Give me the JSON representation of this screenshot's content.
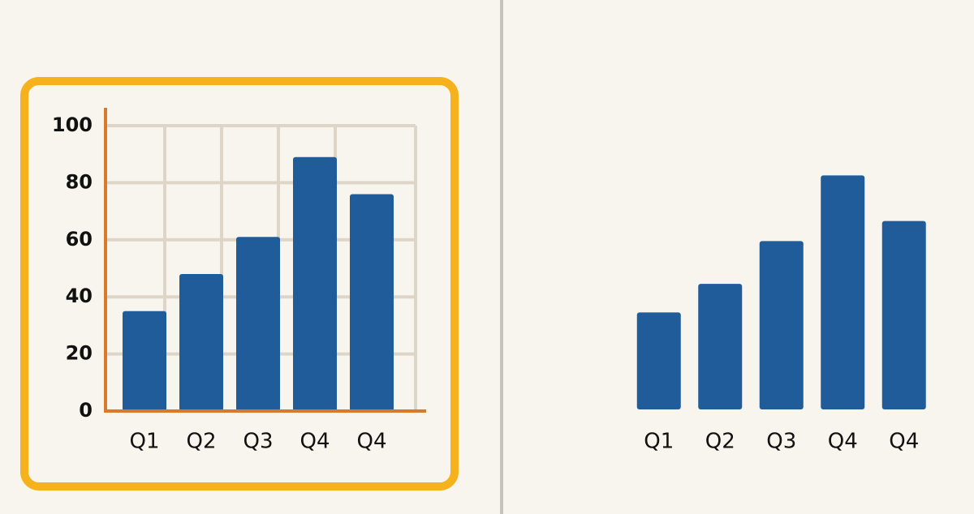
{
  "chart_data": [
    {
      "type": "bar",
      "categories": [
        "Q1",
        "Q2",
        "Q3",
        "Q4",
        "Q4"
      ],
      "values": [
        35,
        48,
        61,
        89,
        76
      ],
      "color": "#1f5c99",
      "ylim": [
        0,
        100
      ],
      "yticks": [
        0,
        20,
        40,
        60,
        80,
        100
      ],
      "grid": true
    },
    {
      "type": "bar",
      "categories": [
        "Q1",
        "Q2",
        "Q3",
        "Q4",
        "Q4"
      ],
      "values": [
        34,
        44,
        59,
        82,
        66
      ],
      "color": "#1f5c99",
      "ylim": [
        0,
        100
      ]
    }
  ]
}
